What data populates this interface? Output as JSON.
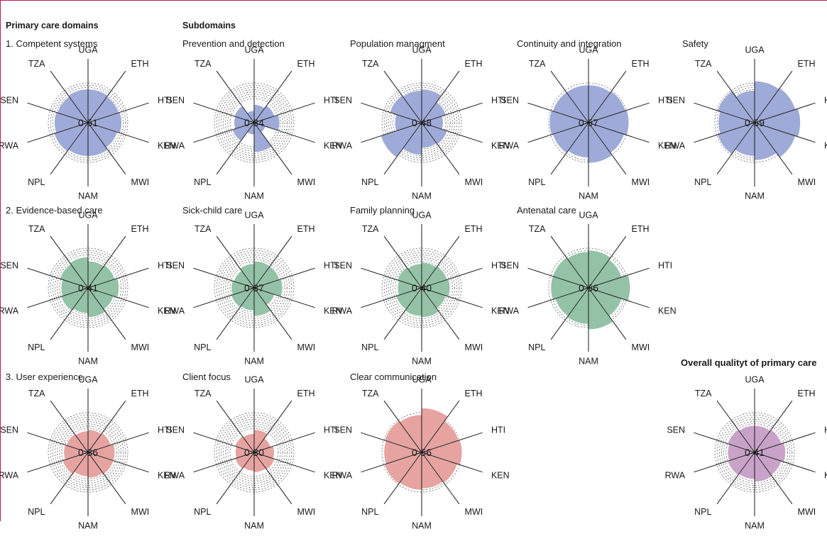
{
  "headers": {
    "domains": "Primary care domains",
    "subdomains": "Subdomains"
  },
  "countries": [
    "ETH",
    "HTI",
    "KEN",
    "MWI",
    "NAM",
    "NPL",
    "RWA",
    "SEN",
    "TZA",
    "UGA"
  ],
  "colors": {
    "competent": "#9eaad8",
    "evidence": "#93c2a6",
    "user": "#e6a3a0",
    "overall": "#c8a2c8"
  },
  "chart_data": [
    {
      "id": "competent-systems",
      "type": "polar-bar",
      "title": "1. Competent systems",
      "label": "0·51",
      "color": "#9eaad8",
      "rlim": [
        0,
        1
      ],
      "values": [
        0.5,
        0.48,
        0.5,
        0.46,
        0.5,
        0.5,
        0.53,
        0.5,
        0.48,
        0.5
      ]
    },
    {
      "id": "prevention-detection",
      "type": "polar-bar",
      "title": "Prevention and detection",
      "label": "0·34",
      "color": "#9eaad8",
      "rlim": [
        0,
        1
      ],
      "values": [
        0.27,
        0.32,
        0.38,
        0.18,
        0.44,
        0.18,
        0.34,
        0.3,
        0.31,
        0.18
      ]
    },
    {
      "id": "population-management",
      "type": "polar-bar",
      "title": "Population managment",
      "label": "0·48",
      "color": "#9eaad8",
      "rlim": [
        0,
        1
      ],
      "values": [
        0.5,
        0.38,
        0.32,
        0.4,
        0.38,
        0.48,
        0.64,
        0.4,
        0.5,
        0.48
      ]
    },
    {
      "id": "continuity-integration",
      "type": "polar-bar",
      "title": "Continuity and integration",
      "label": "0·57",
      "color": "#9eaad8",
      "rlim": [
        0,
        1
      ],
      "values": [
        0.56,
        0.58,
        0.6,
        0.56,
        0.6,
        0.52,
        0.56,
        0.58,
        0.56,
        0.56
      ]
    },
    {
      "id": "safety",
      "type": "polar-bar",
      "title": "Safety",
      "label": "0·59",
      "color": "#9eaad8",
      "rlim": [
        0,
        1
      ],
      "values": [
        0.62,
        0.64,
        0.68,
        0.64,
        0.56,
        0.5,
        0.58,
        0.54,
        0.58,
        0.48
      ]
    },
    {
      "id": "evidence-based-care",
      "type": "polar-bar",
      "title": "2. Evidence-based care",
      "label": "0·41",
      "color": "#93c2a6",
      "rlim": [
        0,
        1
      ],
      "values": [
        0.4,
        0.42,
        0.46,
        0.4,
        0.44,
        0.38,
        0.42,
        0.4,
        0.44,
        0.46
      ]
    },
    {
      "id": "sick-child-care",
      "type": "polar-bar",
      "title": "Sick-child care",
      "label": "0·37",
      "color": "#93c2a6",
      "rlim": [
        0,
        1
      ],
      "values": [
        0.4,
        0.4,
        0.42,
        0.32,
        0.42,
        0.34,
        0.36,
        0.34,
        0.32,
        0.36
      ]
    },
    {
      "id": "family-planning",
      "type": "polar-bar",
      "title": "Family planning",
      "label": "0·40",
      "color": "#93c2a6",
      "rlim": [
        0,
        1
      ],
      "values": [
        0.38,
        0.4,
        0.42,
        0.38,
        0.44,
        0.42,
        0.4,
        0.36,
        0.38,
        0.36
      ]
    },
    {
      "id": "antenatal-care",
      "type": "polar-bar",
      "title": "Antenatal care",
      "label": "0·56",
      "color": "#93c2a6",
      "rlim": [
        0,
        1
      ],
      "values": [
        0.56,
        0.52,
        0.62,
        0.52,
        0.62,
        0.54,
        0.52,
        0.56,
        0.56,
        0.54
      ]
    },
    {
      "id": "user-experience",
      "type": "polar-bar",
      "title": "3. User experience",
      "label": "0·36",
      "color": "#e6a3a0",
      "rlim": [
        0,
        1
      ],
      "values": [
        0.34,
        0.36,
        0.4,
        0.4,
        0.38,
        0.36,
        0.4,
        0.36,
        0.34,
        0.32
      ]
    },
    {
      "id": "client-focus",
      "type": "polar-bar",
      "title": "Client focus",
      "label": "0·30",
      "color": "#e6a3a0",
      "rlim": [
        0,
        1
      ],
      "values": [
        0.34,
        0.26,
        0.3,
        0.32,
        0.3,
        0.28,
        0.3,
        0.28,
        0.3,
        0.28
      ]
    },
    {
      "id": "clear-communication",
      "type": "polar-bar",
      "title": "Clear communication",
      "label": "0·56",
      "color": "#e6a3a0",
      "rlim": [
        0,
        1
      ],
      "values": [
        0.66,
        0.58,
        0.6,
        0.56,
        0.54,
        0.56,
        0.58,
        0.56,
        0.58,
        0.56
      ]
    },
    {
      "id": "overall-quality",
      "type": "polar-bar",
      "title": "Overall qualityt of primary care",
      "label": "0·41",
      "color": "#c8a2c8",
      "rlim": [
        0,
        1
      ],
      "values": [
        0.4,
        0.42,
        0.46,
        0.42,
        0.44,
        0.4,
        0.42,
        0.4,
        0.42,
        0.4
      ]
    }
  ]
}
